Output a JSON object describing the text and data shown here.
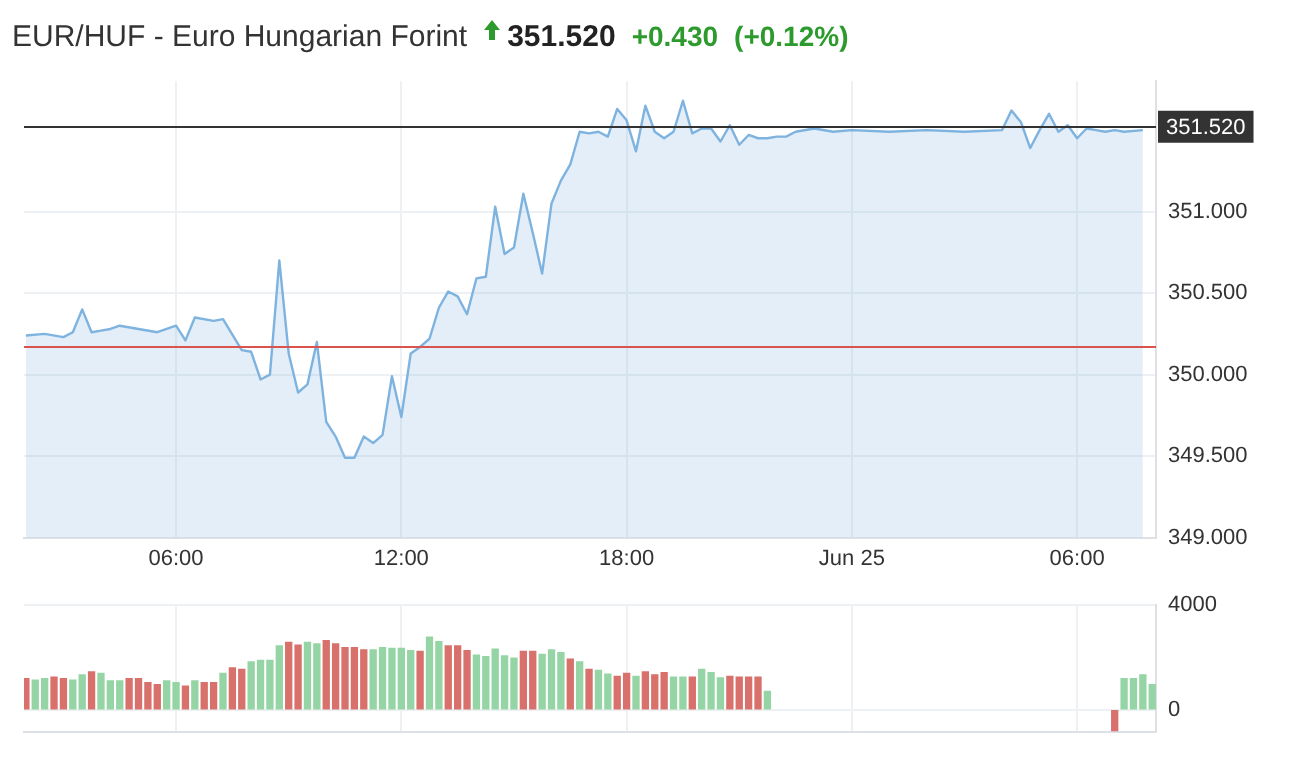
{
  "chart_data": [
    {
      "type": "area",
      "title": "EUR/HUF - Euro Hungarian Forint",
      "annotations": [
        "351.520",
        "+0.430",
        "(+0.12%)"
      ],
      "marker": "none",
      "grid": true,
      "xlim": [
        "--06-24T01:57",
        "--06-25T08:06"
      ],
      "xticks": [
        {
          "value": "--06-24T06:00",
          "label": "06:00"
        },
        {
          "value": "--06-24T12:00",
          "label": "12:00"
        },
        {
          "value": "--06-24T18:00",
          "label": "18:00"
        },
        {
          "value": "--06-25T00:00",
          "label": "Jun 25"
        },
        {
          "value": "--06-25T06:00",
          "label": "06:00"
        }
      ],
      "ylim": [
        349,
        351.8
      ],
      "yticks": [
        {
          "value": 349,
          "label": "349.000"
        },
        {
          "value": 349.5,
          "label": "349.500"
        },
        {
          "value": 350,
          "label": "350.000"
        },
        {
          "value": 350.5,
          "label": "350.500"
        },
        {
          "value": 351,
          "label": "351.000"
        }
      ],
      "ref_lines": [
        {
          "axis": "y",
          "value": 351.52,
          "label": "351.520",
          "color": "#333333"
        },
        {
          "axis": "y",
          "value": 350.17,
          "color": "#d9534f"
        }
      ],
      "x": [
        "--06-24T02:00",
        "--06-24T02:30",
        "--06-24T03:00",
        "--06-24T03:15",
        "--06-24T03:30",
        "--06-24T03:45",
        "--06-24T04:00",
        "--06-24T04:15",
        "--06-24T04:30",
        "--06-24T05:00",
        "--06-24T05:30",
        "--06-24T06:00",
        "--06-24T06:15",
        "--06-24T06:30",
        "--06-24T07:00",
        "--06-24T07:15",
        "--06-24T07:45",
        "--06-24T08:00",
        "--06-24T08:15",
        "--06-24T08:30",
        "--06-24T08:45",
        "--06-24T09:00",
        "--06-24T09:15",
        "--06-24T09:30",
        "--06-24T09:45",
        "--06-24T10:00",
        "--06-24T10:15",
        "--06-24T10:30",
        "--06-24T10:45",
        "--06-24T11:00",
        "--06-24T11:15",
        "--06-24T11:30",
        "--06-24T11:45",
        "--06-24T12:00",
        "--06-24T12:15",
        "--06-24T12:30",
        "--06-24T12:45",
        "--06-24T13:00",
        "--06-24T13:15",
        "--06-24T13:30",
        "--06-24T13:45",
        "--06-24T14:00",
        "--06-24T14:15",
        "--06-24T14:30",
        "--06-24T14:45",
        "--06-24T15:00",
        "--06-24T15:15",
        "--06-24T15:30",
        "--06-24T15:45",
        "--06-24T16:00",
        "--06-24T16:15",
        "--06-24T16:30",
        "--06-24T16:45",
        "--06-24T17:00",
        "--06-24T17:15",
        "--06-24T17:30",
        "--06-24T17:45",
        "--06-24T18:00",
        "--06-24T18:15",
        "--06-24T18:30",
        "--06-24T18:45",
        "--06-24T19:00",
        "--06-24T19:15",
        "--06-24T19:30",
        "--06-24T19:45",
        "--06-24T20:00",
        "--06-24T20:15",
        "--06-24T20:30",
        "--06-24T20:45",
        "--06-24T21:00",
        "--06-24T21:15",
        "--06-24T21:30",
        "--06-24T21:45",
        "--06-24T22:00",
        "--06-24T22:15",
        "--06-24T22:30",
        "--06-24T23:00",
        "--06-24T23:30",
        "--06-25T00:00",
        "--06-25T01:00",
        "--06-25T02:00",
        "--06-25T03:00",
        "--06-25T04:00",
        "--06-25T04:15",
        "--06-25T04:30",
        "--06-25T04:45",
        "--06-25T05:00",
        "--06-25T05:15",
        "--06-25T05:30",
        "--06-25T05:45",
        "--06-25T06:00",
        "--06-25T06:15",
        "--06-25T06:30",
        "--06-25T06:45",
        "--06-25T07:00",
        "--06-25T07:15",
        "--06-25T07:45"
      ],
      "series": [
        {
          "color": "#7eb3df",
          "values": [
            350.24,
            350.25,
            350.23,
            350.26,
            350.4,
            350.26,
            350.27,
            350.28,
            350.3,
            350.28,
            350.26,
            350.3,
            350.21,
            350.35,
            350.33,
            350.34,
            350.15,
            350.14,
            349.97,
            350.0,
            350.7,
            350.13,
            349.89,
            349.94,
            350.2,
            349.71,
            349.62,
            349.49,
            349.49,
            349.62,
            349.58,
            349.63,
            349.99,
            349.74,
            350.13,
            350.17,
            350.22,
            350.41,
            350.51,
            350.48,
            350.37,
            350.59,
            350.6,
            351.03,
            350.74,
            350.78,
            351.11,
            350.87,
            350.62,
            351.05,
            351.19,
            351.29,
            351.49,
            351.48,
            351.49,
            351.46,
            351.63,
            351.56,
            351.37,
            351.65,
            351.49,
            351.45,
            351.49,
            351.68,
            351.48,
            351.51,
            351.51,
            351.43,
            351.53,
            351.41,
            351.47,
            351.45,
            351.45,
            351.46,
            351.46,
            351.49,
            351.51,
            351.49,
            351.5,
            351.49,
            351.5,
            351.49,
            351.5,
            351.62,
            351.55,
            351.39,
            351.5,
            351.6,
            351.49,
            351.53,
            351.45,
            351.51,
            351.5,
            351.49,
            351.5,
            351.49,
            351.5
          ]
        }
      ]
    },
    {
      "type": "bar",
      "grid": true,
      "tick_labels": "y",
      "xlim": [
        "--06-24T01:57",
        "--06-25T08:06"
      ],
      "xticks": [
        {
          "value": "--06-24T06:00",
          "label": null
        },
        {
          "value": "--06-24T12:00",
          "label": null
        },
        {
          "value": "--06-24T18:00",
          "label": null
        },
        {
          "value": "--06-25T00:00",
          "label": null
        },
        {
          "value": "--06-25T06:00",
          "label": null
        }
      ],
      "ylim": [
        -850,
        4000
      ],
      "yticks": [
        0,
        4000
      ],
      "x": [
        "--06-24T02:00",
        "--06-24T02:15",
        "--06-24T02:30",
        "--06-24T02:45",
        "--06-24T03:00",
        "--06-24T03:15",
        "--06-24T03:30",
        "--06-24T03:45",
        "--06-24T04:00",
        "--06-24T04:15",
        "--06-24T04:30",
        "--06-24T04:45",
        "--06-24T05:00",
        "--06-24T05:15",
        "--06-24T05:30",
        "--06-24T05:45",
        "--06-24T06:00",
        "--06-24T06:15",
        "--06-24T06:30",
        "--06-24T06:45",
        "--06-24T07:00",
        "--06-24T07:15",
        "--06-24T07:30",
        "--06-24T07:45",
        "--06-24T08:00",
        "--06-24T08:15",
        "--06-24T08:30",
        "--06-24T08:45",
        "--06-24T09:00",
        "--06-24T09:15",
        "--06-24T09:30",
        "--06-24T09:45",
        "--06-24T10:00",
        "--06-24T10:15",
        "--06-24T10:30",
        "--06-24T10:45",
        "--06-24T11:00",
        "--06-24T11:15",
        "--06-24T11:30",
        "--06-24T11:45",
        "--06-24T12:00",
        "--06-24T12:15",
        "--06-24T12:30",
        "--06-24T12:45",
        "--06-24T13:00",
        "--06-24T13:15",
        "--06-24T13:30",
        "--06-24T13:45",
        "--06-24T14:00",
        "--06-24T14:15",
        "--06-24T14:30",
        "--06-24T14:45",
        "--06-24T15:00",
        "--06-24T15:15",
        "--06-24T15:30",
        "--06-24T15:45",
        "--06-24T16:00",
        "--06-24T16:15",
        "--06-24T16:30",
        "--06-24T16:45",
        "--06-24T17:00",
        "--06-24T17:15",
        "--06-24T17:30",
        "--06-24T17:45",
        "--06-24T18:00",
        "--06-24T18:15",
        "--06-24T18:30",
        "--06-24T18:45",
        "--06-24T19:00",
        "--06-24T19:15",
        "--06-24T19:30",
        "--06-24T19:45",
        "--06-24T20:00",
        "--06-24T20:15",
        "--06-24T20:30",
        "--06-24T20:45",
        "--06-24T21:00",
        "--06-24T21:15",
        "--06-24T21:30",
        "--06-24T21:45",
        "--06-25T07:00",
        "--06-25T07:15",
        "--06-25T07:30",
        "--06-25T07:45",
        "--06-25T08:00"
      ],
      "series": [
        {
          "values": [
            1190,
            1130,
            1190,
            1250,
            1190,
            1130,
            1330,
            1450,
            1390,
            1100,
            1100,
            1190,
            1190,
            1040,
            960,
            1100,
            1040,
            900,
            1100,
            1040,
            1040,
            1390,
            1600,
            1540,
            1830,
            1890,
            1890,
            2440,
            2580,
            2470,
            2580,
            2520,
            2640,
            2520,
            2380,
            2380,
            2290,
            2290,
            2380,
            2350,
            2350,
            2260,
            2230,
            2780,
            2610,
            2440,
            2440,
            2260,
            2090,
            2030,
            2320,
            2060,
            1970,
            2230,
            2230,
            2120,
            2290,
            2180,
            1940,
            1830,
            1540,
            1510,
            1360,
            1280,
            1390,
            1280,
            1450,
            1330,
            1420,
            1250,
            1250,
            1250,
            1540,
            1420,
            1220,
            1280,
            1250,
            1250,
            1250,
            700,
            -800,
            1190,
            1190,
            1330,
            960
          ],
          "colors": [
            "#d8716c",
            "#95d4a4",
            "#95d4a4",
            "#d8716c",
            "#d8716c",
            "#95d4a4",
            "#95d4a4",
            "#d8716c",
            "#95d4a4",
            "#95d4a4",
            "#95d4a4",
            "#d8716c",
            "#d8716c",
            "#d8716c",
            "#d8716c",
            "#95d4a4",
            "#95d4a4",
            "#d8716c",
            "#95d4a4",
            "#d8716c",
            "#d8716c",
            "#95d4a4",
            "#d8716c",
            "#d8716c",
            "#95d4a4",
            "#95d4a4",
            "#95d4a4",
            "#95d4a4",
            "#d8716c",
            "#d8716c",
            "#95d4a4",
            "#95d4a4",
            "#d8716c",
            "#d8716c",
            "#d8716c",
            "#d8716c",
            "#d8716c",
            "#95d4a4",
            "#95d4a4",
            "#95d4a4",
            "#95d4a4",
            "#95d4a4",
            "#d8716c",
            "#95d4a4",
            "#95d4a4",
            "#d8716c",
            "#d8716c",
            "#d8716c",
            "#95d4a4",
            "#95d4a4",
            "#95d4a4",
            "#95d4a4",
            "#95d4a4",
            "#d8716c",
            "#d8716c",
            "#95d4a4",
            "#95d4a4",
            "#95d4a4",
            "#d8716c",
            "#95d4a4",
            "#d8716c",
            "#95d4a4",
            "#95d4a4",
            "#d8716c",
            "#d8716c",
            "#95d4a4",
            "#d8716c",
            "#d8716c",
            "#d8716c",
            "#95d4a4",
            "#95d4a4",
            "#d8716c",
            "#95d4a4",
            "#95d4a4",
            "#95d4a4",
            "#d8716c",
            "#d8716c",
            "#d8716c",
            "#d8716c",
            "#95d4a4",
            "#d8716c",
            "#95d4a4",
            "#95d4a4",
            "#95d4a4",
            "#95d4a4"
          ]
        }
      ]
    }
  ]
}
